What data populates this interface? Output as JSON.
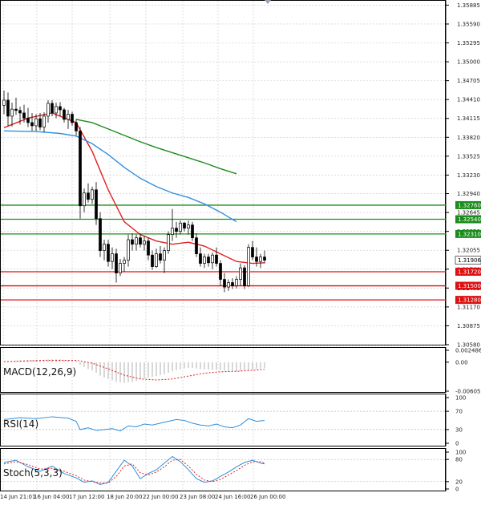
{
  "chart_data": {
    "type": "candlestick",
    "main": {
      "y_ticks": [
        "1.35885",
        "1.35590",
        "1.35295",
        "1.35000",
        "1.34705",
        "1.34410",
        "1.34115",
        "1.33820",
        "1.33525",
        "1.33230",
        "1.32940",
        "1.32645",
        "1.32350",
        "1.32055",
        "1.31760",
        "1.31465",
        "1.31170",
        "1.30875",
        "1.30580"
      ],
      "ylim": [
        1.3058,
        1.3589
      ],
      "x_labels": [
        "14 Jun 21:01",
        "16 Jun 04:00",
        "17 Jun 12:00",
        "18 Jun 20:00",
        "22 Jun 00:00",
        "23 Jun 08:00",
        "24 Jun 16:00",
        "26 Jun 00:00"
      ],
      "candles": [
        {
          "o": 1.3432,
          "h": 1.3455,
          "l": 1.3418,
          "c": 1.344
        },
        {
          "o": 1.344,
          "h": 1.3452,
          "l": 1.34,
          "c": 1.3415
        },
        {
          "o": 1.3415,
          "h": 1.3436,
          "l": 1.3399,
          "c": 1.3426
        },
        {
          "o": 1.3426,
          "h": 1.3444,
          "l": 1.3417,
          "c": 1.3424
        },
        {
          "o": 1.3424,
          "h": 1.343,
          "l": 1.3402,
          "c": 1.342
        },
        {
          "o": 1.342,
          "h": 1.3433,
          "l": 1.3405,
          "c": 1.3412
        },
        {
          "o": 1.3412,
          "h": 1.3428,
          "l": 1.3398,
          "c": 1.3405
        },
        {
          "o": 1.3405,
          "h": 1.342,
          "l": 1.3392,
          "c": 1.34
        },
        {
          "o": 1.34,
          "h": 1.3418,
          "l": 1.3392,
          "c": 1.3411
        },
        {
          "o": 1.3411,
          "h": 1.342,
          "l": 1.3393,
          "c": 1.3398
        },
        {
          "o": 1.3398,
          "h": 1.3421,
          "l": 1.339,
          "c": 1.3415
        },
        {
          "o": 1.3415,
          "h": 1.344,
          "l": 1.3405,
          "c": 1.3435
        },
        {
          "o": 1.3435,
          "h": 1.344,
          "l": 1.3415,
          "c": 1.342
        },
        {
          "o": 1.342,
          "h": 1.3436,
          "l": 1.3412,
          "c": 1.343
        },
        {
          "o": 1.343,
          "h": 1.3437,
          "l": 1.3415,
          "c": 1.3425
        },
        {
          "o": 1.3425,
          "h": 1.3428,
          "l": 1.3405,
          "c": 1.341
        },
        {
          "o": 1.341,
          "h": 1.3425,
          "l": 1.3395,
          "c": 1.3418
        },
        {
          "o": 1.3418,
          "h": 1.3422,
          "l": 1.34,
          "c": 1.3405
        },
        {
          "o": 1.3405,
          "h": 1.341,
          "l": 1.3385,
          "c": 1.3392
        },
        {
          "o": 1.3392,
          "h": 1.3398,
          "l": 1.3255,
          "c": 1.3275
        },
        {
          "o": 1.3275,
          "h": 1.3302,
          "l": 1.3265,
          "c": 1.3295
        },
        {
          "o": 1.3295,
          "h": 1.331,
          "l": 1.328,
          "c": 1.3285
        },
        {
          "o": 1.3285,
          "h": 1.3305,
          "l": 1.3278,
          "c": 1.33
        },
        {
          "o": 1.33,
          "h": 1.3312,
          "l": 1.3245,
          "c": 1.3255
        },
        {
          "o": 1.3255,
          "h": 1.3265,
          "l": 1.3195,
          "c": 1.3205
        },
        {
          "o": 1.3205,
          "h": 1.3222,
          "l": 1.319,
          "c": 1.3215
        },
        {
          "o": 1.3215,
          "h": 1.3222,
          "l": 1.318,
          "c": 1.3188
        },
        {
          "o": 1.3188,
          "h": 1.321,
          "l": 1.3176,
          "c": 1.32
        },
        {
          "o": 1.32,
          "h": 1.3208,
          "l": 1.3155,
          "c": 1.317
        },
        {
          "o": 1.317,
          "h": 1.3192,
          "l": 1.3165,
          "c": 1.3185
        },
        {
          "o": 1.3185,
          "h": 1.3195,
          "l": 1.3172,
          "c": 1.319
        },
        {
          "o": 1.319,
          "h": 1.323,
          "l": 1.318,
          "c": 1.3222
        },
        {
          "o": 1.3222,
          "h": 1.3232,
          "l": 1.3205,
          "c": 1.3215
        },
        {
          "o": 1.3215,
          "h": 1.323,
          "l": 1.3205,
          "c": 1.3225
        },
        {
          "o": 1.3225,
          "h": 1.3232,
          "l": 1.321,
          "c": 1.3215
        },
        {
          "o": 1.3215,
          "h": 1.3228,
          "l": 1.3205,
          "c": 1.322
        },
        {
          "o": 1.322,
          "h": 1.3225,
          "l": 1.319,
          "c": 1.3198
        },
        {
          "o": 1.3198,
          "h": 1.3205,
          "l": 1.3175,
          "c": 1.318
        },
        {
          "o": 1.318,
          "h": 1.3208,
          "l": 1.3178,
          "c": 1.32
        },
        {
          "o": 1.32,
          "h": 1.3212,
          "l": 1.3185,
          "c": 1.319
        },
        {
          "o": 1.319,
          "h": 1.321,
          "l": 1.317,
          "c": 1.3205
        },
        {
          "o": 1.3205,
          "h": 1.3235,
          "l": 1.32,
          "c": 1.323
        },
        {
          "o": 1.323,
          "h": 1.327,
          "l": 1.322,
          "c": 1.324
        },
        {
          "o": 1.324,
          "h": 1.325,
          "l": 1.3225,
          "c": 1.3235
        },
        {
          "o": 1.3235,
          "h": 1.3252,
          "l": 1.323,
          "c": 1.3248
        },
        {
          "o": 1.3248,
          "h": 1.325,
          "l": 1.3235,
          "c": 1.324
        },
        {
          "o": 1.324,
          "h": 1.3252,
          "l": 1.323,
          "c": 1.3245
        },
        {
          "o": 1.3245,
          "h": 1.325,
          "l": 1.322,
          "c": 1.3225
        },
        {
          "o": 1.3225,
          "h": 1.3232,
          "l": 1.3195,
          "c": 1.32
        },
        {
          "o": 1.32,
          "h": 1.321,
          "l": 1.318,
          "c": 1.3185
        },
        {
          "o": 1.3185,
          "h": 1.32,
          "l": 1.3178,
          "c": 1.3195
        },
        {
          "o": 1.3195,
          "h": 1.32,
          "l": 1.318,
          "c": 1.3186
        },
        {
          "o": 1.3186,
          "h": 1.3202,
          "l": 1.3176,
          "c": 1.3198
        },
        {
          "o": 1.3198,
          "h": 1.321,
          "l": 1.318,
          "c": 1.3185
        },
        {
          "o": 1.3185,
          "h": 1.319,
          "l": 1.315,
          "c": 1.316
        },
        {
          "o": 1.316,
          "h": 1.317,
          "l": 1.314,
          "c": 1.3148
        },
        {
          "o": 1.3148,
          "h": 1.316,
          "l": 1.3142,
          "c": 1.3155
        },
        {
          "o": 1.3155,
          "h": 1.3162,
          "l": 1.3145,
          "c": 1.315
        },
        {
          "o": 1.315,
          "h": 1.3165,
          "l": 1.3146,
          "c": 1.316
        },
        {
          "o": 1.316,
          "h": 1.3185,
          "l": 1.315,
          "c": 1.3178
        },
        {
          "o": 1.3178,
          "h": 1.3182,
          "l": 1.3145,
          "c": 1.315
        },
        {
          "o": 1.315,
          "h": 1.3215,
          "l": 1.3148,
          "c": 1.321
        },
        {
          "o": 1.321,
          "h": 1.322,
          "l": 1.319,
          "c": 1.3195
        },
        {
          "o": 1.3195,
          "h": 1.321,
          "l": 1.318,
          "c": 1.3188
        },
        {
          "o": 1.3188,
          "h": 1.32,
          "l": 1.3178,
          "c": 1.3195
        },
        {
          "o": 1.3195,
          "h": 1.3205,
          "l": 1.3185,
          "c": 1.319
        }
      ],
      "moving_averages": [
        {
          "name": "red",
          "color": "#e02020",
          "points": [
            [
              0,
              1.3397
            ],
            [
              6,
              1.3412
            ],
            [
              12,
              1.342
            ],
            [
              18,
              1.3405
            ],
            [
              22,
              1.336
            ],
            [
              26,
              1.33
            ],
            [
              30,
              1.325
            ],
            [
              34,
              1.323
            ],
            [
              38,
              1.322
            ],
            [
              42,
              1.3215
            ],
            [
              46,
              1.3218
            ],
            [
              50,
              1.3212
            ],
            [
              54,
              1.32
            ],
            [
              58,
              1.3188
            ],
            [
              62,
              1.3185
            ],
            [
              65,
              1.3186
            ]
          ]
        },
        {
          "name": "blue",
          "color": "#3090e0",
          "points": [
            [
              0,
              1.3392
            ],
            [
              8,
              1.3391
            ],
            [
              14,
              1.3388
            ],
            [
              18,
              1.3384
            ],
            [
              22,
              1.3372
            ],
            [
              26,
              1.3355
            ],
            [
              30,
              1.3335
            ],
            [
              34,
              1.3318
            ],
            [
              38,
              1.3305
            ],
            [
              42,
              1.3295
            ],
            [
              46,
              1.3288
            ],
            [
              50,
              1.3278
            ],
            [
              54,
              1.3265
            ],
            [
              58,
              1.325
            ]
          ]
        },
        {
          "name": "green",
          "color": "#1c8c1c",
          "points": [
            [
              18,
              1.341
            ],
            [
              22,
              1.3405
            ],
            [
              26,
              1.3395
            ],
            [
              30,
              1.3385
            ],
            [
              34,
              1.3375
            ],
            [
              38,
              1.3366
            ],
            [
              42,
              1.3358
            ],
            [
              46,
              1.335
            ],
            [
              50,
              1.3342
            ],
            [
              54,
              1.3333
            ],
            [
              58,
              1.3325
            ]
          ]
        }
      ],
      "levels": [
        {
          "value": 1.3276,
          "label": "1.32760",
          "color": "#1c8c1c"
        },
        {
          "value": 1.3254,
          "label": "1.32540",
          "color": "#1c8c1c"
        },
        {
          "value": 1.3231,
          "label": "1.32310",
          "color": "#1c8c1c"
        },
        {
          "value": 1.3172,
          "label": "1.31720",
          "color": "#dd1111"
        },
        {
          "value": 1.315,
          "label": "1.31500",
          "color": "#dd1111"
        },
        {
          "value": 1.3128,
          "label": "1.31280",
          "color": "#dd1111"
        }
      ],
      "current_price": {
        "value": 1.319,
        "label": "1.31906"
      }
    },
    "macd": {
      "label": "MACD(12,26,9)",
      "y_ticks": [
        "0.002486",
        "0.00",
        "-0.00605"
      ],
      "ylim": [
        -0.00605,
        0.002486
      ],
      "histogram": [
        0.0,
        0.0001,
        0.0002,
        0.0003,
        0.0004,
        0.0004,
        0.0005,
        0.0005,
        0.0005,
        0.0005,
        0.0005,
        0.0006,
        0.0006,
        0.0006,
        0.0006,
        0.0005,
        0.0005,
        0.0005,
        0.0004,
        -0.0005,
        -0.001,
        -0.0014,
        -0.0017,
        -0.0022,
        -0.0028,
        -0.0032,
        -0.0035,
        -0.0038,
        -0.0041,
        -0.0042,
        -0.0043,
        -0.0042,
        -0.0041,
        -0.0039,
        -0.0036,
        -0.0034,
        -0.0032,
        -0.0031,
        -0.0029,
        -0.0027,
        -0.0025,
        -0.0022,
        -0.0019,
        -0.0017,
        -0.0015,
        -0.0013,
        -0.0012,
        -0.0012,
        -0.0013,
        -0.0014,
        -0.0015,
        -0.0015,
        -0.0016,
        -0.0016,
        -0.0017,
        -0.0018,
        -0.0019,
        -0.0019,
        -0.0019,
        -0.0018,
        -0.0018,
        -0.0017,
        -0.0015,
        -0.0014,
        -0.0013,
        -0.0012
      ],
      "signal": [
        [
          0,
          0.0001
        ],
        [
          10,
          0.0004
        ],
        [
          18,
          0.0004
        ],
        [
          22,
          -0.0002
        ],
        [
          26,
          -0.0014
        ],
        [
          30,
          -0.0027
        ],
        [
          34,
          -0.0035
        ],
        [
          38,
          -0.0037
        ],
        [
          42,
          -0.0035
        ],
        [
          46,
          -0.0029
        ],
        [
          50,
          -0.0023
        ],
        [
          54,
          -0.002
        ],
        [
          58,
          -0.0019
        ],
        [
          62,
          -0.0017
        ],
        [
          65,
          -0.0015
        ]
      ]
    },
    "rsi": {
      "label": "RSI(14)",
      "y_ticks": [
        "100",
        "70",
        "30",
        "0"
      ],
      "ylim": [
        0,
        100
      ],
      "levels": [
        70,
        30
      ],
      "points": [
        [
          0,
          52
        ],
        [
          4,
          56
        ],
        [
          8,
          54
        ],
        [
          12,
          58
        ],
        [
          16,
          55
        ],
        [
          18,
          48
        ],
        [
          19,
          30
        ],
        [
          21,
          34
        ],
        [
          23,
          28
        ],
        [
          25,
          30
        ],
        [
          27,
          32
        ],
        [
          29,
          27
        ],
        [
          31,
          38
        ],
        [
          33,
          36
        ],
        [
          35,
          42
        ],
        [
          37,
          40
        ],
        [
          39,
          44
        ],
        [
          41,
          48
        ],
        [
          43,
          52
        ],
        [
          45,
          50
        ],
        [
          47,
          44
        ],
        [
          49,
          40
        ],
        [
          51,
          38
        ],
        [
          53,
          42
        ],
        [
          55,
          36
        ],
        [
          57,
          34
        ],
        [
          59,
          40
        ],
        [
          61,
          54
        ],
        [
          63,
          48
        ],
        [
          65,
          50
        ]
      ]
    },
    "stoch": {
      "label": "Stoch(5,3,3)",
      "y_ticks": [
        "100",
        "80",
        "20",
        "0"
      ],
      "ylim": [
        0,
        100
      ],
      "levels": [
        80,
        20
      ],
      "k": [
        [
          0,
          72
        ],
        [
          3,
          78
        ],
        [
          6,
          60
        ],
        [
          9,
          48
        ],
        [
          12,
          62
        ],
        [
          15,
          42
        ],
        [
          18,
          30
        ],
        [
          20,
          18
        ],
        [
          22,
          22
        ],
        [
          24,
          12
        ],
        [
          26,
          18
        ],
        [
          28,
          48
        ],
        [
          30,
          78
        ],
        [
          32,
          62
        ],
        [
          34,
          28
        ],
        [
          36,
          42
        ],
        [
          38,
          52
        ],
        [
          40,
          70
        ],
        [
          42,
          88
        ],
        [
          44,
          74
        ],
        [
          46,
          52
        ],
        [
          48,
          28
        ],
        [
          50,
          18
        ],
        [
          52,
          22
        ],
        [
          54,
          34
        ],
        [
          56,
          46
        ],
        [
          58,
          60
        ],
        [
          60,
          72
        ],
        [
          62,
          78
        ],
        [
          64,
          70
        ],
        [
          65,
          68
        ]
      ],
      "d": [
        [
          0,
          68
        ],
        [
          3,
          74
        ],
        [
          6,
          66
        ],
        [
          9,
          54
        ],
        [
          12,
          56
        ],
        [
          15,
          48
        ],
        [
          18,
          36
        ],
        [
          20,
          24
        ],
        [
          22,
          20
        ],
        [
          24,
          16
        ],
        [
          26,
          16
        ],
        [
          28,
          34
        ],
        [
          30,
          62
        ],
        [
          32,
          68
        ],
        [
          34,
          44
        ],
        [
          36,
          38
        ],
        [
          38,
          46
        ],
        [
          40,
          60
        ],
        [
          42,
          78
        ],
        [
          44,
          80
        ],
        [
          46,
          62
        ],
        [
          48,
          40
        ],
        [
          50,
          24
        ],
        [
          52,
          20
        ],
        [
          54,
          26
        ],
        [
          56,
          38
        ],
        [
          58,
          50
        ],
        [
          60,
          64
        ],
        [
          62,
          74
        ],
        [
          64,
          74
        ],
        [
          65,
          70
        ]
      ]
    }
  }
}
